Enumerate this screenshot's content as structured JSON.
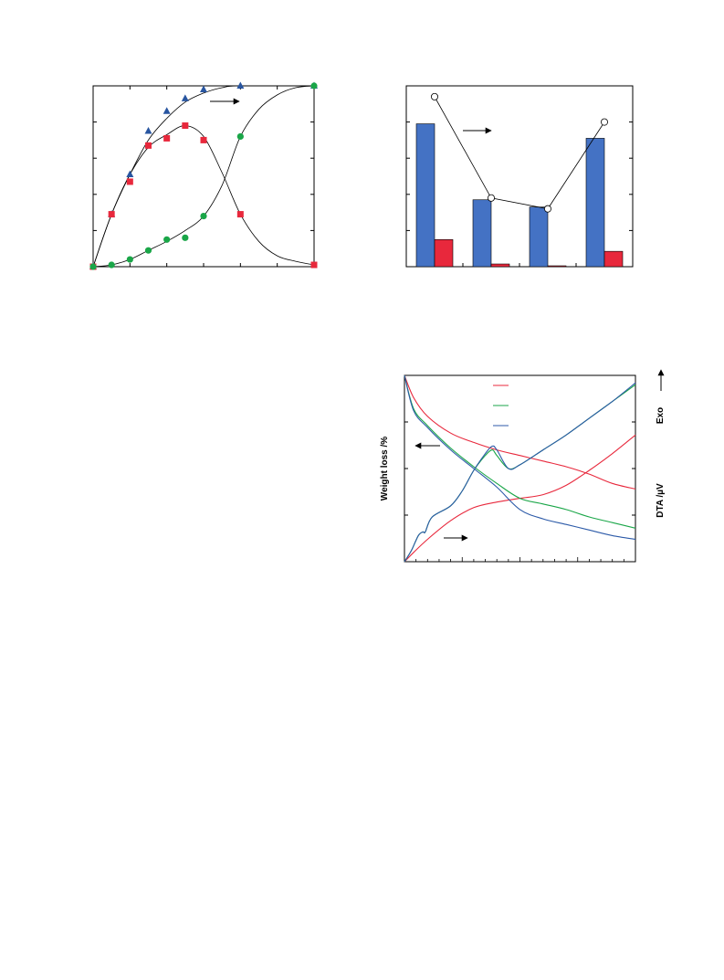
{
  "chart_data": [
    {
      "type": "scatter",
      "xlim": [
        0,
        12
      ],
      "ylim": [
        0,
        100
      ],
      "grid": false,
      "series": [
        {
          "marker": "triangle",
          "color": "#2855a0",
          "points": [
            [
              0,
              0
            ],
            [
              1,
              29
            ],
            [
              2,
              51
            ],
            [
              3,
              75
            ],
            [
              4,
              86
            ],
            [
              5,
              93
            ],
            [
              6,
              98
            ],
            [
              8,
              100
            ],
            [
              12,
              100
            ]
          ],
          "curve": [
            [
              0,
              0
            ],
            [
              1,
              29
            ],
            [
              2,
              51
            ],
            [
              3,
              70
            ],
            [
              4,
              82
            ],
            [
              5,
              91
            ],
            [
              6,
              96
            ],
            [
              7,
              99
            ],
            [
              8,
              100
            ],
            [
              12,
              100
            ]
          ]
        },
        {
          "marker": "square",
          "color": "#e8283c",
          "points": [
            [
              0,
              0
            ],
            [
              1,
              29
            ],
            [
              2,
              47
            ],
            [
              3,
              67
            ],
            [
              4,
              71
            ],
            [
              5,
              78
            ],
            [
              6,
              70
            ],
            [
              8,
              29
            ],
            [
              12,
              1
            ]
          ],
          "curve": [
            [
              0,
              0
            ],
            [
              1,
              29
            ],
            [
              2,
              51
            ],
            [
              3,
              66
            ],
            [
              4,
              73
            ],
            [
              5,
              78
            ],
            [
              6,
              72
            ],
            [
              7,
              52
            ],
            [
              8,
              29
            ],
            [
              9,
              14
            ],
            [
              10,
              6
            ],
            [
              11,
              3
            ],
            [
              12,
              1
            ]
          ]
        },
        {
          "marker": "circle",
          "color": "#1aa648",
          "points": [
            [
              0,
              0
            ],
            [
              1,
              1
            ],
            [
              2,
              4
            ],
            [
              3,
              9
            ],
            [
              4,
              15
            ],
            [
              5,
              16
            ],
            [
              6,
              28
            ],
            [
              8,
              72
            ],
            [
              12,
              100
            ]
          ],
          "curve": [
            [
              0,
              0
            ],
            [
              1,
              1
            ],
            [
              2,
              4
            ],
            [
              3,
              9
            ],
            [
              4,
              14
            ],
            [
              5,
              20
            ],
            [
              6,
              28
            ],
            [
              7,
              45
            ],
            [
              8,
              72
            ],
            [
              9,
              87
            ],
            [
              10,
              95
            ],
            [
              11,
              99
            ],
            [
              12,
              100
            ]
          ]
        }
      ],
      "annotations": [
        {
          "type": "arrow",
          "direction": "right"
        }
      ]
    },
    {
      "type": "bar",
      "categories": [
        "1",
        "2",
        "3",
        "4"
      ],
      "bar_ylim": [
        0,
        100
      ],
      "series": [
        {
          "color": "#4472c4",
          "values": [
            79,
            37,
            33,
            71
          ]
        },
        {
          "color": "#e8283c",
          "values": [
            15,
            1.5,
            0.5,
            8.5
          ]
        }
      ],
      "line_series": {
        "marker": "open-circle",
        "values": [
          94,
          38,
          32,
          80
        ]
      },
      "annotations": [
        {
          "type": "arrow",
          "direction": "right"
        }
      ]
    },
    {
      "type": "line",
      "ylabel_left": "Weight loss /%",
      "ylabel_right": "DTA /µV",
      "exo_label": "Exo",
      "xlim": [
        0,
        100
      ],
      "ylim": [
        0,
        100
      ],
      "series": [
        {
          "color": "#e8283c",
          "tg": [
            [
              0,
              100
            ],
            [
              4,
              88
            ],
            [
              10,
              78
            ],
            [
              20,
              69
            ],
            [
              30,
              64
            ],
            [
              40,
              60
            ],
            [
              50,
              57
            ],
            [
              60,
              54
            ],
            [
              70,
              51
            ],
            [
              80,
              47
            ],
            [
              90,
              42
            ],
            [
              100,
              39
            ]
          ],
          "dta": [
            [
              0,
              0
            ],
            [
              4,
              5
            ],
            [
              10,
              12
            ],
            [
              20,
              22
            ],
            [
              30,
              29
            ],
            [
              40,
              32
            ],
            [
              50,
              34
            ],
            [
              60,
              36
            ],
            [
              70,
              41
            ],
            [
              80,
              49
            ],
            [
              90,
              58
            ],
            [
              100,
              68
            ]
          ]
        },
        {
          "color": "#1aa648",
          "tg": [
            [
              0,
              100
            ],
            [
              4,
              82
            ],
            [
              10,
              73
            ],
            [
              20,
              61
            ],
            [
              30,
              51
            ],
            [
              40,
              42
            ],
            [
              50,
              34
            ],
            [
              60,
              31
            ],
            [
              70,
              28
            ],
            [
              80,
              24
            ],
            [
              90,
              21
            ],
            [
              100,
              18
            ]
          ],
          "dta": [
            [
              0,
              0
            ],
            [
              3,
              6
            ],
            [
              6,
              14
            ],
            [
              8,
              16
            ],
            [
              9,
              16
            ],
            [
              12,
              24
            ],
            [
              20,
              30
            ],
            [
              25,
              38
            ],
            [
              30,
              49
            ],
            [
              35,
              57
            ],
            [
              38,
              60
            ],
            [
              40,
              57
            ],
            [
              45,
              50
            ],
            [
              50,
              52
            ],
            [
              60,
              60
            ],
            [
              70,
              68
            ],
            [
              80,
              77
            ],
            [
              90,
              86
            ],
            [
              100,
              95
            ]
          ]
        },
        {
          "color": "#2c5aa8",
          "tg": [
            [
              0,
              100
            ],
            [
              4,
              81
            ],
            [
              10,
              72
            ],
            [
              20,
              60
            ],
            [
              30,
              50
            ],
            [
              40,
              40
            ],
            [
              50,
              28
            ],
            [
              60,
              23
            ],
            [
              70,
              20
            ],
            [
              80,
              17
            ],
            [
              90,
              14
            ],
            [
              100,
              12
            ]
          ],
          "dta": [
            [
              0,
              0
            ],
            [
              3,
              6
            ],
            [
              6,
              14
            ],
            [
              8,
              16
            ],
            [
              9,
              16
            ],
            [
              12,
              24
            ],
            [
              20,
              30
            ],
            [
              25,
              38
            ],
            [
              30,
              49
            ],
            [
              35,
              58
            ],
            [
              38,
              62
            ],
            [
              40,
              60
            ],
            [
              45,
              50
            ],
            [
              50,
              52
            ],
            [
              60,
              60
            ],
            [
              70,
              68
            ],
            [
              80,
              77
            ],
            [
              90,
              86
            ],
            [
              100,
              96
            ]
          ]
        }
      ],
      "annotations": [
        {
          "type": "arrow",
          "direction": "left"
        },
        {
          "type": "arrow",
          "direction": "right"
        },
        {
          "type": "arrow",
          "direction": "up"
        }
      ]
    }
  ]
}
